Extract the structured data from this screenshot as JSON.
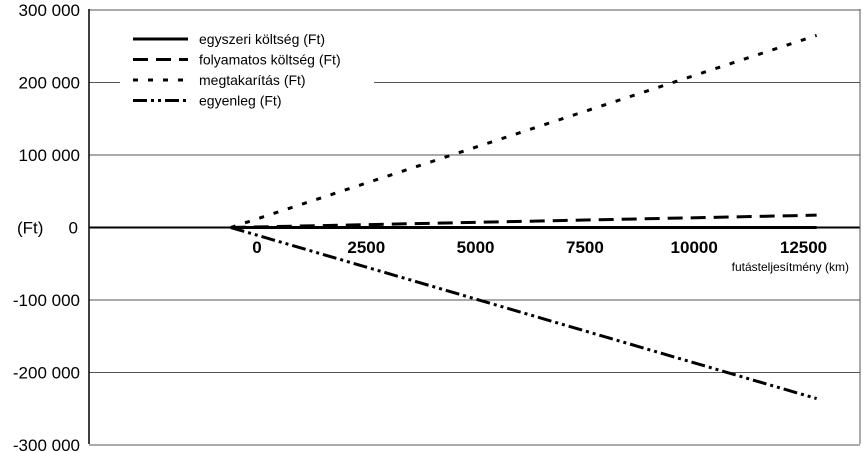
{
  "chart_data": {
    "type": "line",
    "title": "",
    "ylabel": "(Ft)",
    "xlabel": "futásteljesítmény (km)",
    "x_ticks": [
      "0",
      "2500",
      "5000",
      "7500",
      "10000",
      "12500"
    ],
    "y_ticks": [
      "300 000",
      "200 000",
      "100 000",
      "0",
      "-100 000",
      "-200 000",
      "-300 000"
    ],
    "ylim": [
      -300000,
      300000
    ],
    "grid": true,
    "legend_position": "top-left",
    "series": [
      {
        "name": "egyszeri költség (Ft)",
        "style": "solid",
        "x": [
          -600,
          12800
        ],
        "values": [
          0,
          0
        ]
      },
      {
        "name": "folyamatos költség (Ft)",
        "style": "dashed",
        "x": [
          -600,
          12800
        ],
        "values": [
          0,
          17000
        ]
      },
      {
        "name": "megtakarítás (Ft)",
        "style": "dotted",
        "x": [
          -600,
          12800
        ],
        "values": [
          0,
          265000
        ]
      },
      {
        "name": "egyenleg (Ft)",
        "style": "dash-dot-dot",
        "x": [
          -600,
          12800
        ],
        "values": [
          0,
          -236000
        ]
      }
    ]
  }
}
